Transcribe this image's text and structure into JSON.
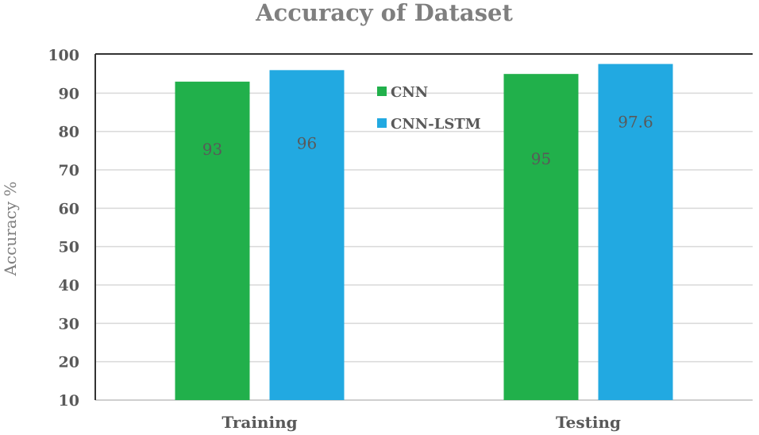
{
  "chart_data": {
    "type": "bar",
    "title": "Accuracy of Dataset",
    "xlabel": "",
    "ylabel": "Accuracy %",
    "categories": [
      "Training",
      "Testing"
    ],
    "series": [
      {
        "name": "CNN",
        "values": [
          93,
          95
        ],
        "color": "#21b04b"
      },
      {
        "name": "CNN-LSTM",
        "values": [
          96,
          97.6
        ],
        "color": "#22a9e1"
      }
    ],
    "data_labels": [
      [
        "93",
        "95"
      ],
      [
        "96",
        "97.6"
      ]
    ],
    "ylim": [
      10,
      100
    ],
    "yticks": [
      10,
      20,
      30,
      40,
      50,
      60,
      70,
      80,
      90,
      100
    ],
    "grid": true,
    "legend": "top-center"
  }
}
